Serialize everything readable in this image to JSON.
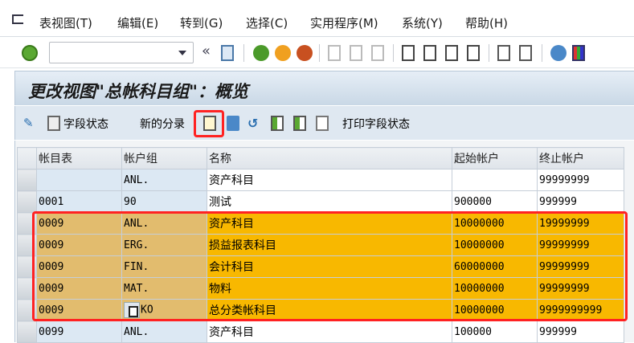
{
  "menu": [
    "表视图(T)",
    "编辑(E)",
    "转到(G)",
    "选择(C)",
    "实用程序(M)",
    "系统(Y)",
    "帮助(H)"
  ],
  "command_field": {
    "value": ""
  },
  "title": "更改视图\"总帐科目组\"：概览",
  "app_toolbar": {
    "field_status": "字段状态",
    "new_entries": "新的分录",
    "print_field_status": "打印字段状态"
  },
  "table": {
    "columns": [
      "帐目表",
      "帐户组",
      "名称",
      "起始帐户",
      "终止帐户"
    ],
    "rows": [
      {
        "chart": "",
        "group": "ANL.",
        "name": "资产科目",
        "from": "",
        "to": "99999999",
        "highlight": false
      },
      {
        "chart": "0001",
        "group": "90",
        "name": "测试",
        "from": "900000",
        "to": "999999",
        "highlight": false
      },
      {
        "chart": "0009",
        "group": "ANL.",
        "name": "资产科目",
        "from": "10000000",
        "to": "19999999",
        "highlight": true
      },
      {
        "chart": "0009",
        "group": "ERG.",
        "name": "损益报表科目",
        "from": "10000000",
        "to": "99999999",
        "highlight": true
      },
      {
        "chart": "0009",
        "group": "FIN.",
        "name": "会计科目",
        "from": "60000000",
        "to": "99999999",
        "highlight": true
      },
      {
        "chart": "0009",
        "group": "MAT.",
        "name": "物料",
        "from": "10000000",
        "to": "99999999",
        "highlight": true
      },
      {
        "chart": "0009",
        "group": "KO",
        "name": "总分类帐科目",
        "from": "10000000",
        "to": "9999999999",
        "highlight": true
      },
      {
        "chart": "0099",
        "group": "ANL.",
        "name": "资产科目",
        "from": "100000",
        "to": "999999",
        "highlight": false
      }
    ]
  },
  "colors": {
    "highlight_key": "#e2bc6e",
    "highlight_value": "#f8b800",
    "annotation": "#ff2222"
  }
}
